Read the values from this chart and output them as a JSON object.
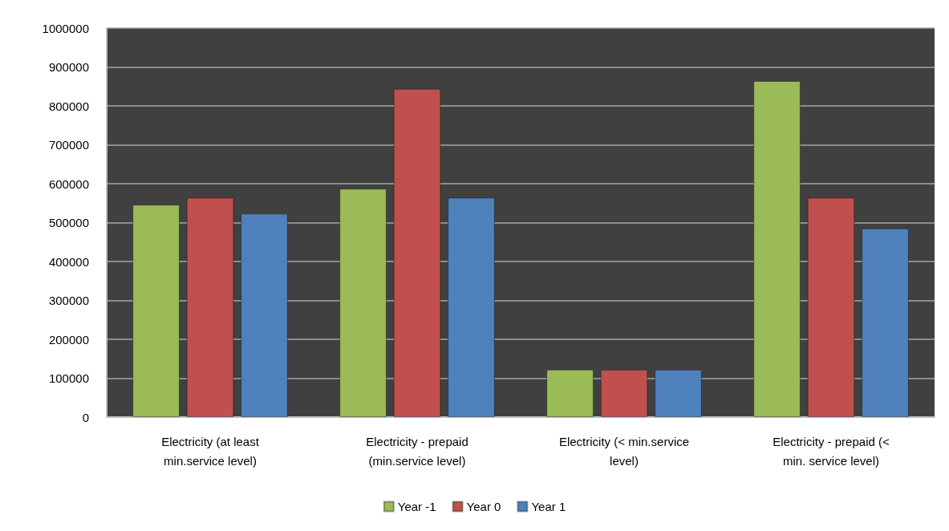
{
  "chart_data": {
    "type": "bar",
    "categories": [
      "Electricity (at least\nmin.service level)",
      "Electricity - prepaid\n(min.service level)",
      "Electricity (< min.service\nlevel)",
      "Electricity - prepaid (<\nmin. service level)"
    ],
    "series": [
      {
        "name": "Year -1",
        "color": "#9bbb59",
        "values": [
          546000,
          587000,
          122000,
          864000
        ]
      },
      {
        "name": "Year 0",
        "color": "#c0504d",
        "values": [
          564000,
          844000,
          122000,
          564000
        ]
      },
      {
        "name": "Year 1",
        "color": "#4f81bd",
        "values": [
          523000,
          564000,
          122000,
          485000
        ]
      }
    ],
    "ylim": [
      0,
      1000000
    ],
    "yticks": [
      0,
      100000,
      200000,
      300000,
      400000,
      500000,
      600000,
      700000,
      800000,
      900000,
      1000000
    ],
    "grid": "y",
    "legend": "bottom"
  }
}
